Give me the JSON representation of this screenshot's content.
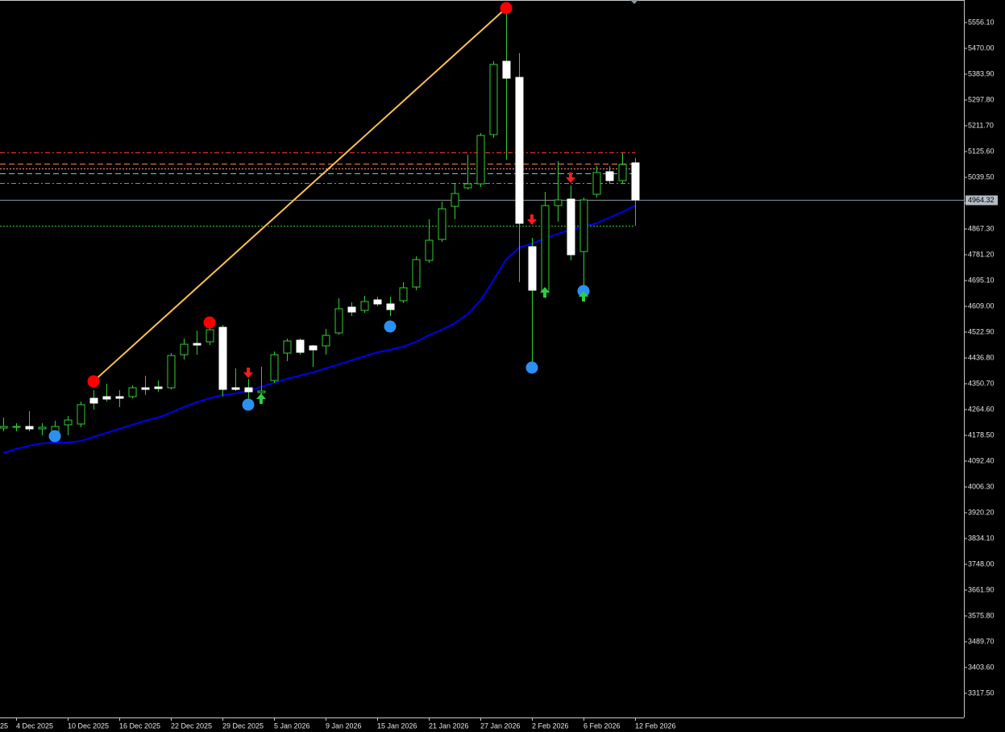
{
  "chart_data": {
    "type": "candlestick",
    "categories": [
      null,
      "4 Dec 2025",
      null,
      null,
      null,
      "10 Dec 2025",
      null,
      null,
      null,
      "16 Dec 2025",
      null,
      null,
      null,
      "22 Dec 2025",
      null,
      null,
      null,
      "29 Dec 2025",
      null,
      null,
      null,
      "5 Jan 2026",
      null,
      null,
      null,
      "9 Jan 2026",
      null,
      null,
      null,
      "15 Jan 2026",
      null,
      null,
      null,
      "21 Jan 2026",
      null,
      null,
      null,
      "27 Jan 2026",
      null,
      null,
      null,
      "2 Feb 2026",
      null,
      null,
      null,
      "6 Feb 2026",
      null,
      null,
      null,
      "12 Feb 2026"
    ],
    "x_edge_label": "25",
    "open": [
      4202.7,
      4205.4,
      4208.1,
      4200.0,
      4186.5,
      4213.5,
      4216.2,
      4302.2,
      4307.6,
      4307.6,
      4307.6,
      4337.2,
      4339.9,
      4337.2,
      4447.5,
      4485.2,
      4490.6,
      4539.0,
      4337.2,
      4337.2,
      4321.1,
      4361.4,
      4452.9,
      4496.0,
      4477.1,
      4477.1,
      4520.2,
      4606.3,
      4595.5,
      4630.5,
      4617.0,
      4627.8,
      4673.5,
      4762.4,
      4832.3,
      4942.6,
      5004.5,
      5017.9,
      5182.1,
      5426.9,
      5373.1,
      4808.1,
      4657.4,
      4945.3,
      4966.8,
      4791.9,
      4983.0,
      5058.3,
      5028.7,
      5087.9
    ],
    "high": [
      4237.7,
      4218.8,
      4259.2,
      4218.8,
      4226.9,
      4243.0,
      4291.5,
      4329.2,
      4350.7,
      4329.2,
      4345.3,
      4377.6,
      4361.4,
      4452.9,
      4501.3,
      4528.3,
      4555.2,
      4547.1,
      4401.8,
      4366.8,
      4407.2,
      4458.3,
      4501.3,
      4501.3,
      4479.8,
      4533.6,
      4635.9,
      4622.4,
      4643.9,
      4641.3,
      4641.3,
      4689.7,
      4775.8,
      4899.6,
      4958.7,
      5017.9,
      5114.8,
      5187.4,
      5426.9,
      5604.5,
      5453.8,
      4837.7,
      4991.0,
      5093.3,
      5012.6,
      4972.2,
      5077.1,
      5077.1,
      5120.2,
      5104.0
    ],
    "low": [
      4191.9,
      4191.9,
      4191.9,
      4178.5,
      4165.0,
      4178.5,
      4205.4,
      4264.6,
      4291.5,
      4272.6,
      4302.2,
      4313.0,
      4323.8,
      4331.8,
      4431.4,
      4447.5,
      4479.8,
      4307.6,
      4326.5,
      4296.9,
      4313.0,
      4353.4,
      4426.0,
      4447.5,
      4407.2,
      4447.5,
      4514.8,
      4576.7,
      4587.4,
      4609.0,
      4576.7,
      4619.7,
      4662.8,
      4754.3,
      4824.2,
      4899.6,
      4999.1,
      5007.2,
      5171.3,
      5098.7,
      4689.7,
      4404.5,
      4635.9,
      4891.5,
      4762.4,
      4657.4,
      4972.2,
      5017.9,
      5017.9,
      4878.0
    ],
    "close": [
      4208.1,
      4208.1,
      4200.0,
      4205.4,
      4208.1,
      4229.6,
      4280.7,
      4286.1,
      4299.6,
      4302.2,
      4337.2,
      4331.8,
      4334.5,
      4444.8,
      4482.5,
      4479.8,
      4530.9,
      4331.8,
      4331.8,
      4323.8,
      4326.5,
      4447.5,
      4493.3,
      4455.6,
      4463.7,
      4512.1,
      4600.9,
      4590.1,
      4625.1,
      4617.0,
      4598.2,
      4670.9,
      4765.0,
      4829.6,
      4934.5,
      4985.7,
      5017.9,
      5179.4,
      5416.2,
      5370.4,
      4886.1,
      4662.8,
      4945.3,
      4964.1,
      4781.2,
      4964.1,
      5055.6,
      5028.7,
      5082.5,
      4964.32
    ],
    "up_color": "#32cd32",
    "down_color": "#ffffff",
    "wick_color": "#32cd32",
    "ma": {
      "color": "#0000ee",
      "values": [
        4119.3,
        4132.7,
        4143.5,
        4151.6,
        4154.2,
        4154.2,
        4159.6,
        4173.1,
        4186.5,
        4200.0,
        4213.5,
        4226.9,
        4237.7,
        4253.8,
        4272.6,
        4288.8,
        4302.2,
        4313.0,
        4318.4,
        4326.5,
        4339.9,
        4353.4,
        4366.8,
        4377.6,
        4388.3,
        4401.8,
        4415.2,
        4428.7,
        4442.2,
        4455.6,
        4463.7,
        4474.4,
        4490.6,
        4512.1,
        4530.9,
        4552.5,
        4582.1,
        4627.8,
        4695.1,
        4765.0,
        4805.4,
        4818.8,
        4835.0,
        4851.1,
        4864.6,
        4875.3,
        4886.1,
        4904.9,
        4923.8,
        4945.3
      ]
    },
    "zigzag": {
      "color": "#ffc04d",
      "values": [
        null,
        null,
        null,
        null,
        null,
        null,
        null,
        4358.7,
        4397.6,
        4436.6,
        4475.5,
        4514.4,
        4553.4,
        4592.3,
        4631.2,
        4670.1,
        4709.1,
        4748.0,
        4786.9,
        4825.9,
        4864.8,
        4903.7,
        4942.7,
        4981.6,
        5020.5,
        5059.4,
        5098.4,
        5137.3,
        5176.2,
        5215.2,
        5254.1,
        5293.0,
        5332.0,
        5370.9,
        5409.8,
        5448.7,
        5487.7,
        5526.6,
        5565.5,
        5604.5,
        null,
        null,
        null,
        null,
        null,
        null,
        null,
        null,
        null,
        null
      ]
    },
    "swing_highs": {
      "color": "#ff0000",
      "values": [
        null,
        null,
        null,
        null,
        null,
        null,
        null,
        4358.7,
        null,
        null,
        null,
        null,
        null,
        null,
        null,
        null,
        4555.2,
        null,
        null,
        null,
        null,
        null,
        null,
        null,
        null,
        null,
        null,
        null,
        null,
        null,
        null,
        null,
        null,
        null,
        null,
        null,
        null,
        null,
        null,
        5604.5,
        null,
        null,
        null,
        null,
        null,
        null,
        null,
        null,
        null,
        null
      ]
    },
    "swing_lows": {
      "color": "#2b90f0",
      "values": [
        null,
        null,
        null,
        null,
        4175.8,
        null,
        null,
        null,
        null,
        null,
        null,
        null,
        null,
        null,
        null,
        null,
        null,
        null,
        null,
        4280.7,
        null,
        null,
        null,
        null,
        null,
        null,
        null,
        null,
        null,
        null,
        4541.7,
        null,
        null,
        null,
        null,
        null,
        null,
        null,
        null,
        null,
        null,
        4404.5,
        null,
        null,
        null,
        4660.1,
        null,
        null,
        null,
        null
      ]
    },
    "sell_arrows": {
      "color": "#ff1a1a",
      "values": [
        null,
        null,
        null,
        null,
        null,
        null,
        null,
        null,
        null,
        null,
        null,
        null,
        null,
        null,
        null,
        null,
        null,
        null,
        null,
        4380.3,
        null,
        null,
        null,
        null,
        null,
        null,
        null,
        null,
        null,
        null,
        null,
        null,
        null,
        null,
        null,
        null,
        null,
        null,
        null,
        null,
        null,
        4891.5,
        null,
        null,
        5031.4,
        null,
        null,
        null,
        null,
        null
      ]
    },
    "buy_arrows": {
      "color": "#2ecc40",
      "values": [
        null,
        null,
        null,
        null,
        null,
        null,
        null,
        null,
        null,
        null,
        null,
        null,
        null,
        null,
        null,
        null,
        null,
        null,
        null,
        null,
        4307.6,
        null,
        null,
        null,
        null,
        null,
        null,
        null,
        null,
        null,
        null,
        null,
        null,
        null,
        null,
        null,
        null,
        null,
        null,
        null,
        null,
        null,
        4662.8,
        null,
        null,
        4649.3,
        null,
        null,
        null,
        null
      ]
    },
    "levels": [
      {
        "value": 5122.9,
        "color": "#ff3030",
        "style": "dashdot"
      },
      {
        "value": 5085.2,
        "color": "#ff7f3f",
        "style": "dashed"
      },
      {
        "value": 5069.1,
        "color": "#ff9090",
        "style": "dotted"
      },
      {
        "value": 5052.9,
        "color": "#40e0d0",
        "style": "dashed"
      },
      {
        "value": 5020.6,
        "color": "#3c9cff",
        "style": "dashdot"
      },
      {
        "value": 4878.0,
        "color": "#32cd32",
        "style": "dotted"
      }
    ],
    "last_price": 4964.32,
    "ylim": [
      3236.8,
      5631.4
    ],
    "yticks": [
      {
        "value": 5556.1,
        "label": "5556.10"
      },
      {
        "value": 5470,
        "label": "5470.00"
      },
      {
        "value": 5383.9,
        "label": "5383.90"
      },
      {
        "value": 5297.8,
        "label": "5297.80"
      },
      {
        "value": 5211.7,
        "label": "5211.70"
      },
      {
        "value": 5125.6,
        "label": "5125.60"
      },
      {
        "value": 5039.5,
        "label": "5039.50"
      },
      {
        "value": 4953.4,
        "label": "4953.40"
      },
      {
        "value": 4867.3,
        "label": "4867.30"
      },
      {
        "value": 4781.2,
        "label": "4781.20"
      },
      {
        "value": 4695.1,
        "label": "4695.10"
      },
      {
        "value": 4609,
        "label": "4609.00"
      },
      {
        "value": 4522.9,
        "label": "4522.90"
      },
      {
        "value": 4436.8,
        "label": "4436.80"
      },
      {
        "value": 4350.7,
        "label": "4350.70"
      },
      {
        "value": 4264.6,
        "label": "4264.60"
      },
      {
        "value": 4178.5,
        "label": "4178.50"
      },
      {
        "value": 4092.4,
        "label": "4092.40"
      },
      {
        "value": 4006.3,
        "label": "4006.30"
      },
      {
        "value": 3920.2,
        "label": "3920.20"
      },
      {
        "value": 3834.1,
        "label": "3834.10"
      },
      {
        "value": 3748,
        "label": "3748.00"
      },
      {
        "value": 3661.9,
        "label": "3661.90"
      },
      {
        "value": 3575.8,
        "label": "3575.80"
      },
      {
        "value": 3489.7,
        "label": "3489.70"
      },
      {
        "value": 3403.6,
        "label": "3403.60"
      },
      {
        "value": 3317.5,
        "label": "3317.50"
      }
    ]
  }
}
